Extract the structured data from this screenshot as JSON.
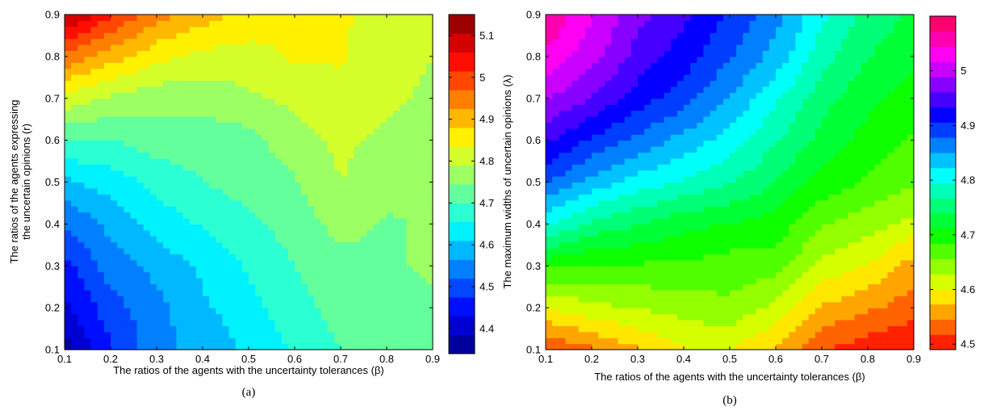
{
  "chart_data": [
    {
      "type": "heatmap",
      "panel_label": "(a)",
      "title": "",
      "xlabel": "The ratios of the agents with the uncertainty tolerances (β)",
      "ylabel_lines": [
        "The ratios of the agents expressing",
        "the uncertain opinions (r)"
      ],
      "x": [
        0.1,
        0.2,
        0.3,
        0.4,
        0.5,
        0.6,
        0.7,
        0.8,
        0.9
      ],
      "y": [
        0.1,
        0.2,
        0.3,
        0.4,
        0.5,
        0.6,
        0.7,
        0.8,
        0.9
      ],
      "xlim": [
        0.1,
        0.9
      ],
      "ylim": [
        0.1,
        0.9
      ],
      "x_ticks": [
        "0.1",
        "0.2",
        "0.3",
        "0.4",
        "0.5",
        "0.6",
        "0.7",
        "0.8",
        "0.9"
      ],
      "y_ticks": [
        "0.1",
        "0.2",
        "0.3",
        "0.4",
        "0.5",
        "0.6",
        "0.7",
        "0.8",
        "0.9"
      ],
      "z": [
        [
          4.36,
          4.47,
          4.55,
          4.58,
          4.62,
          4.66,
          4.7,
          4.72,
          4.74
        ],
        [
          4.42,
          4.5,
          4.55,
          4.6,
          4.64,
          4.68,
          4.72,
          4.73,
          4.74
        ],
        [
          4.46,
          4.54,
          4.58,
          4.62,
          4.66,
          4.7,
          4.73,
          4.74,
          4.75
        ],
        [
          4.52,
          4.58,
          4.63,
          4.66,
          4.69,
          4.72,
          4.76,
          4.74,
          4.75
        ],
        [
          4.6,
          4.63,
          4.67,
          4.7,
          4.72,
          4.74,
          4.79,
          4.76,
          4.75
        ],
        [
          4.7,
          4.7,
          4.72,
          4.72,
          4.73,
          4.77,
          4.8,
          4.78,
          4.76
        ],
        [
          4.82,
          4.78,
          4.76,
          4.76,
          4.78,
          4.8,
          4.82,
          4.8,
          4.78
        ],
        [
          4.96,
          4.9,
          4.85,
          4.82,
          4.82,
          4.84,
          4.84,
          4.81,
          4.79
        ],
        [
          5.12,
          5.02,
          4.94,
          4.9,
          4.86,
          4.84,
          4.84,
          4.82,
          4.8
        ]
      ],
      "colorbar": {
        "colormap": "jet",
        "range": [
          4.34,
          5.15
        ],
        "ticks": [
          "4.4",
          "4.5",
          "4.6",
          "4.7",
          "4.8",
          "4.9",
          "5",
          "5.1"
        ],
        "tick_values": [
          4.4,
          4.5,
          4.6,
          4.7,
          4.8,
          4.9,
          5.0,
          5.1
        ]
      },
      "levels": 18
    },
    {
      "type": "heatmap",
      "panel_label": "(b)",
      "title": "",
      "xlabel": "The ratios of the agents with the uncertainty tolerances (β)",
      "ylabel_lines": [
        "The maximum widths of uncertain opinions (λ)"
      ],
      "x": [
        0.1,
        0.2,
        0.3,
        0.4,
        0.5,
        0.6,
        0.7,
        0.8,
        0.9
      ],
      "y": [
        0.1,
        0.2,
        0.3,
        0.4,
        0.5,
        0.6,
        0.7,
        0.8,
        0.9
      ],
      "xlim": [
        0.1,
        0.9
      ],
      "ylim": [
        0.1,
        0.9
      ],
      "x_ticks": [
        "0.1",
        "0.2",
        "0.3",
        "0.4",
        "0.5",
        "0.6",
        "0.7",
        "0.8",
        "0.9"
      ],
      "y_ticks": [
        "0.1",
        "0.2",
        "0.3",
        "0.4",
        "0.5",
        "0.6",
        "0.7",
        "0.8",
        "0.9"
      ],
      "z": [
        [
          4.52,
          4.54,
          4.57,
          4.6,
          4.6,
          4.57,
          4.52,
          4.5,
          4.49
        ],
        [
          4.6,
          4.62,
          4.63,
          4.64,
          4.65,
          4.62,
          4.57,
          4.55,
          4.53
        ],
        [
          4.69,
          4.68,
          4.68,
          4.68,
          4.67,
          4.67,
          4.62,
          4.6,
          4.56
        ],
        [
          4.8,
          4.76,
          4.74,
          4.72,
          4.71,
          4.7,
          4.66,
          4.64,
          4.62
        ],
        [
          4.88,
          4.84,
          4.81,
          4.79,
          4.77,
          4.74,
          4.7,
          4.68,
          4.66
        ],
        [
          4.94,
          4.9,
          4.87,
          4.84,
          4.81,
          4.77,
          4.73,
          4.7,
          4.68
        ],
        [
          4.99,
          4.96,
          4.92,
          4.89,
          4.85,
          4.8,
          4.75,
          4.72,
          4.7
        ],
        [
          5.04,
          5.0,
          4.95,
          4.92,
          4.88,
          4.84,
          4.78,
          4.74,
          4.72
        ],
        [
          5.07,
          5.02,
          4.97,
          4.94,
          4.9,
          4.86,
          4.8,
          4.76,
          4.73
        ]
      ],
      "colorbar": {
        "colormap": "hsv",
        "range": [
          4.49,
          5.1
        ],
        "ticks": [
          "4.5",
          "4.6",
          "4.7",
          "4.8",
          "4.9",
          "5"
        ],
        "tick_values": [
          4.5,
          4.6,
          4.7,
          4.8,
          4.9,
          5.0
        ]
      },
      "levels": 22
    }
  ]
}
